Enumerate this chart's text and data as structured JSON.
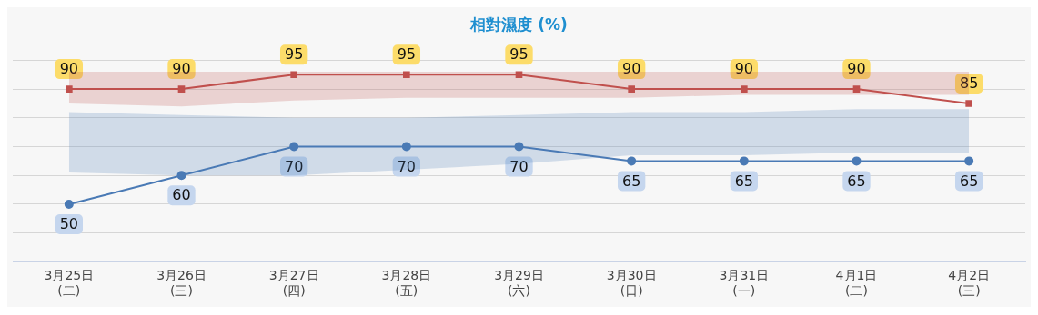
{
  "chart_data": {
    "type": "line",
    "title": "相對濕度 (%)",
    "categories": [
      "3月25日\n(二)",
      "3月26日\n(三)",
      "3月27日\n(四)",
      "3月28日\n(五)",
      "3月29日\n(六)",
      "3月30日\n(日)",
      "3月31日\n(一)",
      "4月1日\n(二)",
      "4月2日\n(三)"
    ],
    "series": [
      {
        "color": "#c0504d",
        "marker": "square",
        "values": [
          90,
          90,
          95,
          95,
          95,
          90,
          90,
          90,
          85
        ],
        "lower": [
          85,
          84,
          86,
          87,
          87,
          87,
          88,
          88,
          88
        ],
        "upper": [
          96,
          96,
          96,
          96,
          96,
          96,
          96,
          96,
          96
        ]
      },
      {
        "color": "#4a7ab5",
        "marker": "circle",
        "values": [
          50,
          60,
          70,
          70,
          70,
          65,
          65,
          65,
          65
        ],
        "lower": [
          61,
          60,
          60,
          62,
          64,
          67,
          67,
          68,
          68
        ],
        "upper": [
          82,
          81,
          80,
          80,
          81,
          82,
          82,
          83,
          83
        ]
      }
    ],
    "ylim": [
      30,
      100
    ],
    "yticks": [
      {
        "value": 30,
        "label": null
      },
      {
        "value": 40,
        "label": null
      },
      {
        "value": 50,
        "label": null
      },
      {
        "value": 60,
        "label": null
      },
      {
        "value": 70,
        "label": null
      },
      {
        "value": 80,
        "label": null
      },
      {
        "value": 90,
        "label": null
      },
      {
        "value": 100,
        "label": null
      }
    ],
    "tick_labels": "x",
    "grid": "y",
    "legend": false,
    "data_labels": true,
    "line_style": "solid"
  }
}
